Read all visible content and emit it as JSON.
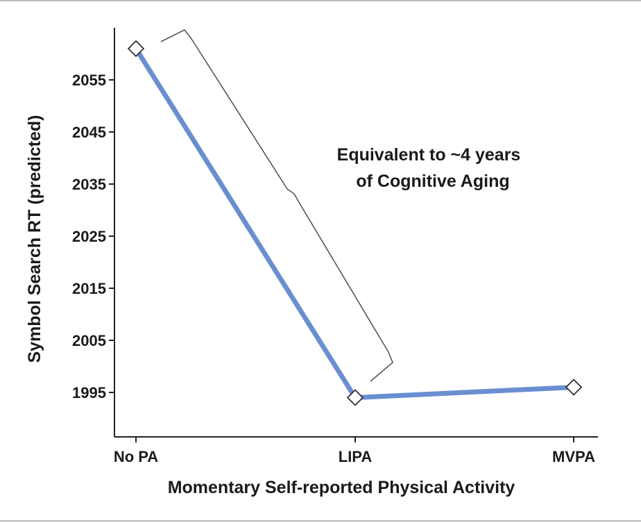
{
  "chart_data": {
    "type": "line",
    "categories": [
      "No PA",
      "LIPA",
      "MVPA"
    ],
    "series": [
      {
        "values": [
          2061,
          1994,
          1996
        ],
        "color": "#6a8fd0"
      }
    ],
    "xlabel": "Momentary Self-reported Physical Activity",
    "ylabel": "Symbol Search RT (predicted)",
    "yticks": [
      1995,
      2005,
      2015,
      2025,
      2035,
      2045,
      2055
    ],
    "ylim": [
      1988,
      2068
    ],
    "grid": false,
    "marker": "diamond",
    "annotation": {
      "lines": [
        "Equivalent to ~4 years",
        "of Cognitive Aging"
      ],
      "bracket_span": [
        "No PA",
        "LIPA"
      ]
    }
  }
}
